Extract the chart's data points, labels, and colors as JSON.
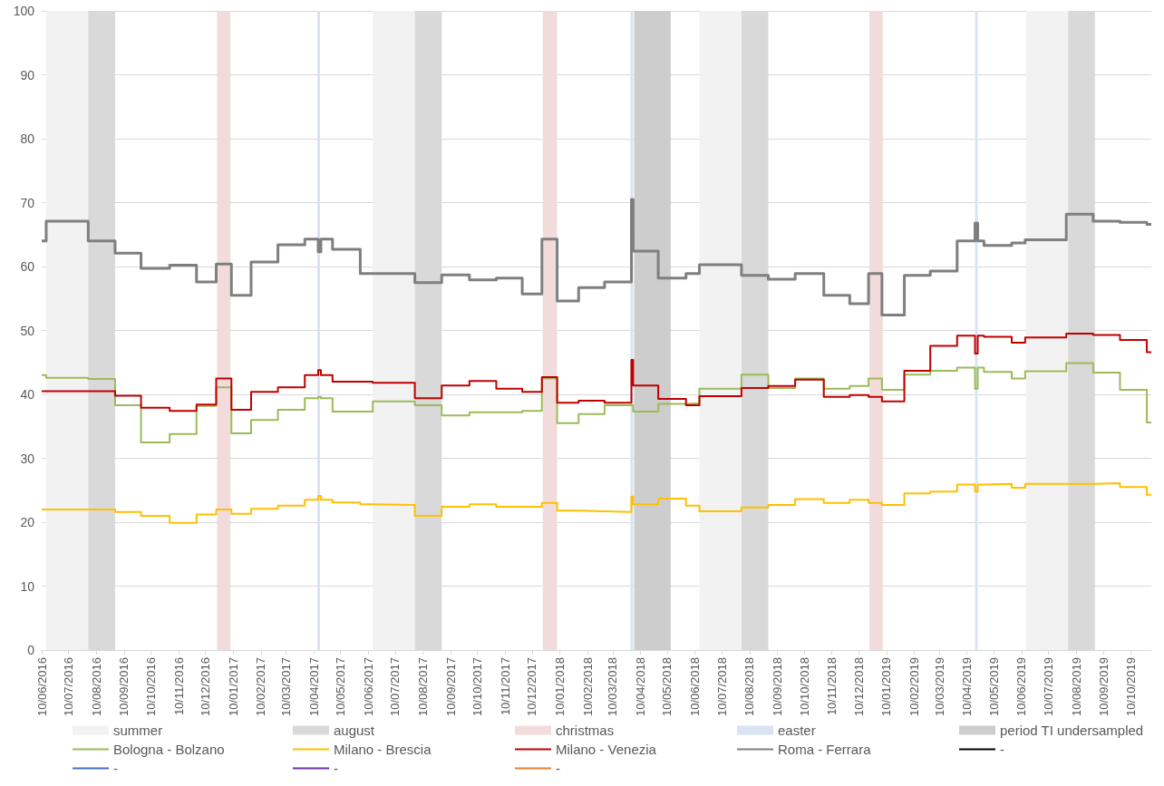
{
  "chart_data": {
    "type": "step",
    "marker": "none",
    "grid": "y",
    "legend": "bottom",
    "x": [
      "2016-06-10",
      "2016-06-15",
      "2016-08-01",
      "2016-08-31",
      "2016-09-29",
      "2016-10-31",
      "2016-11-30",
      "2016-12-22",
      "2017-01-08",
      "2017-01-30",
      "2017-03-01",
      "2017-03-31",
      "2017-04-15",
      "2017-04-18",
      "2017-05-01",
      "2017-06-01",
      "2017-06-15",
      "2017-08-01",
      "2017-08-31",
      "2017-10-01",
      "2017-10-31",
      "2017-11-29",
      "2017-12-21",
      "2018-01-07",
      "2018-01-31",
      "2018-03-01",
      "2018-03-31",
      "2018-04-02",
      "2018-04-30",
      "2018-05-31",
      "2018-06-15",
      "2018-08-01",
      "2018-08-31",
      "2018-09-30",
      "2018-11-01",
      "2018-11-30",
      "2018-12-21",
      "2019-01-05",
      "2019-01-30",
      "2019-02-28",
      "2019-03-30",
      "2019-04-19",
      "2019-04-22",
      "2019-04-29",
      "2019-05-30",
      "2019-06-14",
      "2019-07-30",
      "2019-08-29",
      "2019-09-28",
      "2019-10-28",
      "2019-11-02"
    ],
    "series": [
      {
        "name": "Bologna - Bolzano",
        "color": "#9bbb59",
        "values": [
          43.0,
          42.6,
          42.4,
          38.3,
          32.5,
          33.8,
          38.2,
          41.1,
          33.9,
          36.0,
          37.6,
          39.4,
          39.6,
          39.4,
          37.3,
          37.3,
          38.9,
          38.3,
          36.7,
          37.2,
          37.2,
          37.4,
          42.5,
          35.5,
          36.9,
          38.3,
          38.3,
          37.3,
          38.5,
          38.6,
          40.9,
          43.1,
          41.0,
          42.5,
          40.9,
          41.3,
          42.5,
          40.7,
          43.1,
          43.7,
          44.2,
          40.9,
          44.2,
          43.5,
          42.5,
          43.6,
          44.9,
          43.4,
          40.7,
          35.6,
          35.6
        ]
      },
      {
        "name": "Milano - Brescia",
        "color": "#ffc000",
        "values": [
          22.0,
          22.0,
          22.0,
          21.6,
          21.0,
          19.9,
          21.2,
          22.0,
          21.3,
          22.1,
          22.6,
          23.5,
          24.1,
          23.5,
          23.1,
          22.8,
          22.7,
          21.0,
          22.4,
          22.8,
          22.4,
          22.4,
          23.0,
          21.8,
          21.7,
          21.6,
          24.0,
          22.8,
          23.7,
          22.6,
          21.7,
          22.3,
          22.7,
          23.6,
          23.0,
          23.5,
          23.0,
          22.7,
          24.5,
          24.8,
          25.9,
          24.8,
          25.9,
          26.0,
          25.4,
          26.0,
          26.0,
          26.1,
          25.5,
          24.3,
          24.3
        ]
      },
      {
        "name": "Milano - Venezia",
        "color": "#c00000",
        "values": [
          40.5,
          40.5,
          40.5,
          39.8,
          37.9,
          37.4,
          38.4,
          42.5,
          37.6,
          40.4,
          41.1,
          43.0,
          43.8,
          43.0,
          42.0,
          42.0,
          41.8,
          39.4,
          41.4,
          42.1,
          40.9,
          40.4,
          42.7,
          38.7,
          39.0,
          38.7,
          45.4,
          41.4,
          39.3,
          38.3,
          39.7,
          41.0,
          41.3,
          42.3,
          39.6,
          39.9,
          39.6,
          38.9,
          43.7,
          47.6,
          49.2,
          46.4,
          49.2,
          49.0,
          48.1,
          48.9,
          49.5,
          49.3,
          48.5,
          46.6,
          46.6
        ]
      },
      {
        "name": "Roma - Ferrara",
        "color": "#7f7f7f",
        "values": [
          64.0,
          67.1,
          64.0,
          62.1,
          59.7,
          60.2,
          57.6,
          60.4,
          55.5,
          60.7,
          63.4,
          64.3,
          62.3,
          64.3,
          62.7,
          58.9,
          58.9,
          57.5,
          58.7,
          57.9,
          58.2,
          55.7,
          64.3,
          54.6,
          56.7,
          57.6,
          70.5,
          62.4,
          58.2,
          58.9,
          60.3,
          58.6,
          58.0,
          58.9,
          55.5,
          54.2,
          58.9,
          52.4,
          58.6,
          59.3,
          64.0,
          66.8,
          64.0,
          63.3,
          63.7,
          64.2,
          68.2,
          67.1,
          66.9,
          66.6,
          66.6
        ]
      },
      {
        "name": "-",
        "color": "#000000",
        "values": [
          null,
          null,
          null,
          null,
          null,
          null,
          null,
          null,
          null,
          null,
          null,
          null,
          null,
          null,
          null,
          null,
          null,
          null,
          null,
          null,
          null,
          null,
          null,
          null,
          null,
          null,
          null,
          null,
          null,
          null,
          null,
          null,
          null,
          null,
          null,
          null,
          null,
          null,
          null,
          null,
          null,
          null,
          null,
          null,
          null,
          null,
          null,
          null,
          null,
          null,
          null
        ]
      },
      {
        "name": "-",
        "color": "#4472c4",
        "values": [
          null,
          null,
          null,
          null,
          null,
          null,
          null,
          null,
          null,
          null,
          null,
          null,
          null,
          null,
          null,
          null,
          null,
          null,
          null,
          null,
          null,
          null,
          null,
          null,
          null,
          null,
          null,
          null,
          null,
          null,
          null,
          null,
          null,
          null,
          null,
          null,
          null,
          null,
          null,
          null,
          null,
          null,
          null,
          null,
          null,
          null,
          null,
          null,
          null,
          null,
          null
        ]
      },
      {
        "name": "-",
        "color": "#7030a0",
        "values": [
          null,
          null,
          null,
          null,
          null,
          null,
          null,
          null,
          null,
          null,
          null,
          null,
          null,
          null,
          null,
          null,
          null,
          null,
          null,
          null,
          null,
          null,
          null,
          null,
          null,
          null,
          null,
          null,
          null,
          null,
          null,
          null,
          null,
          null,
          null,
          null,
          null,
          null,
          null,
          null,
          null,
          null,
          null,
          null,
          null,
          null,
          null,
          null,
          null,
          null,
          null
        ]
      },
      {
        "name": "-",
        "color": "#ed7d31",
        "values": [
          null,
          null,
          null,
          null,
          null,
          null,
          null,
          null,
          null,
          null,
          null,
          null,
          null,
          null,
          null,
          null,
          null,
          null,
          null,
          null,
          null,
          null,
          null,
          null,
          null,
          null,
          null,
          null,
          null,
          null,
          null,
          null,
          null,
          null,
          null,
          null,
          null,
          null,
          null,
          null,
          null,
          null,
          null,
          null,
          null,
          null,
          null,
          null,
          null,
          null,
          null
        ]
      }
    ],
    "xlim": [
      "2016-06-10",
      "2019-11-02"
    ],
    "xticks": [
      {
        "value": "2016-06-10",
        "label": "10/06/2016"
      },
      {
        "value": "2016-07-10",
        "label": "10/07/2016"
      },
      {
        "value": "2016-08-10",
        "label": "10/08/2016"
      },
      {
        "value": "2016-09-10",
        "label": "10/09/2016"
      },
      {
        "value": "2016-10-10",
        "label": "10/10/2016"
      },
      {
        "value": "2016-11-10",
        "label": "10/11/2016"
      },
      {
        "value": "2016-12-10",
        "label": "10/12/2016"
      },
      {
        "value": "2017-01-10",
        "label": "10/01/2017"
      },
      {
        "value": "2017-02-10",
        "label": "10/02/2017"
      },
      {
        "value": "2017-03-10",
        "label": "10/03/2017"
      },
      {
        "value": "2017-04-10",
        "label": "10/04/2017"
      },
      {
        "value": "2017-05-10",
        "label": "10/05/2017"
      },
      {
        "value": "2017-06-10",
        "label": "10/06/2017"
      },
      {
        "value": "2017-07-10",
        "label": "10/07/2017"
      },
      {
        "value": "2017-08-10",
        "label": "10/08/2017"
      },
      {
        "value": "2017-09-10",
        "label": "10/09/2017"
      },
      {
        "value": "2017-10-10",
        "label": "10/10/2017"
      },
      {
        "value": "2017-11-10",
        "label": "10/11/2017"
      },
      {
        "value": "2017-12-10",
        "label": "10/12/2017"
      },
      {
        "value": "2018-01-10",
        "label": "10/01/2018"
      },
      {
        "value": "2018-02-10",
        "label": "10/02/2018"
      },
      {
        "value": "2018-03-10",
        "label": "10/03/2018"
      },
      {
        "value": "2018-04-10",
        "label": "10/04/2018"
      },
      {
        "value": "2018-05-10",
        "label": "10/05/2018"
      },
      {
        "value": "2018-06-10",
        "label": "10/06/2018"
      },
      {
        "value": "2018-07-10",
        "label": "10/07/2018"
      },
      {
        "value": "2018-08-10",
        "label": "10/08/2018"
      },
      {
        "value": "2018-09-10",
        "label": "10/09/2018"
      },
      {
        "value": "2018-10-10",
        "label": "10/10/2018"
      },
      {
        "value": "2018-11-10",
        "label": "10/11/2018"
      },
      {
        "value": "2018-12-10",
        "label": "10/12/2018"
      },
      {
        "value": "2019-01-10",
        "label": "10/01/2019"
      },
      {
        "value": "2019-02-10",
        "label": "10/02/2019"
      },
      {
        "value": "2019-03-10",
        "label": "10/03/2019"
      },
      {
        "value": "2019-04-10",
        "label": "10/04/2019"
      },
      {
        "value": "2019-05-10",
        "label": "10/05/2019"
      },
      {
        "value": "2019-06-10",
        "label": "10/06/2019"
      },
      {
        "value": "2019-07-10",
        "label": "10/07/2019"
      },
      {
        "value": "2019-08-10",
        "label": "10/08/2019"
      },
      {
        "value": "2019-09-10",
        "label": "10/09/2019"
      },
      {
        "value": "2019-10-10",
        "label": "10/10/2019"
      }
    ],
    "ylim": [
      0,
      100
    ],
    "yticks": [
      0,
      10,
      20,
      30,
      40,
      50,
      60,
      70,
      80,
      90,
      100
    ],
    "bands": [
      {
        "axis": "x",
        "from": "2016-06-15",
        "to": "2016-08-01",
        "label": "summer",
        "color": "#f2f2f2"
      },
      {
        "axis": "x",
        "from": "2016-08-01",
        "to": "2016-08-31",
        "label": "august",
        "color": "#d9d9d9"
      },
      {
        "axis": "x",
        "from": "2016-12-23",
        "to": "2017-01-07",
        "label": "christmas",
        "color": "#f2dcdb"
      },
      {
        "axis": "x",
        "from": "2017-04-14",
        "to": "2017-04-17",
        "label": "easter",
        "color": "#dae3f3"
      },
      {
        "axis": "x",
        "from": "2018-04-03",
        "to": "2018-05-14",
        "label": "period TI undersampled",
        "color": "#cdcdcd"
      },
      {
        "axis": "x",
        "from": "2017-06-15",
        "to": "2017-08-01",
        "label": null,
        "color": "#f2f2f2"
      },
      {
        "axis": "x",
        "from": "2018-06-15",
        "to": "2018-08-01",
        "label": null,
        "color": "#f2f2f2"
      },
      {
        "axis": "x",
        "from": "2019-06-15",
        "to": "2019-08-01",
        "label": null,
        "color": "#f2f2f2"
      },
      {
        "axis": "x",
        "from": "2017-08-01",
        "to": "2017-08-31",
        "label": null,
        "color": "#d9d9d9"
      },
      {
        "axis": "x",
        "from": "2018-08-01",
        "to": "2018-08-31",
        "label": null,
        "color": "#d9d9d9"
      },
      {
        "axis": "x",
        "from": "2019-08-01",
        "to": "2019-08-31",
        "label": null,
        "color": "#d9d9d9"
      },
      {
        "axis": "x",
        "from": "2017-12-22",
        "to": "2018-01-07",
        "label": null,
        "color": "#f2dcdb"
      },
      {
        "axis": "x",
        "from": "2018-12-22",
        "to": "2019-01-06",
        "label": null,
        "color": "#f2dcdb"
      },
      {
        "axis": "x",
        "from": "2018-03-30",
        "to": "2018-04-02",
        "label": null,
        "color": "#dae3f3"
      },
      {
        "axis": "x",
        "from": "2019-04-19",
        "to": "2019-04-22",
        "label": null,
        "color": "#dae3f3"
      }
    ]
  }
}
